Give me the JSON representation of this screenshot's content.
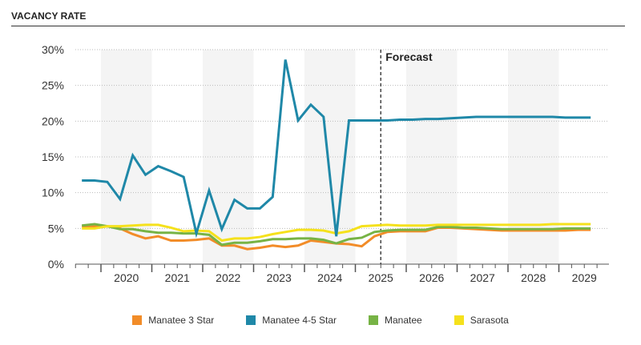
{
  "title": "VACANCY RATE",
  "chart_data": {
    "type": "line",
    "title": "VACANCY RATE",
    "xlabel": "",
    "ylabel": "",
    "ylim": [
      0,
      30
    ],
    "yticks": [
      "0%",
      "5%",
      "10%",
      "15%",
      "20%",
      "25%",
      "30%"
    ],
    "year_labels": [
      "2020",
      "2021",
      "2022",
      "2023",
      "2024",
      "2025",
      "2026",
      "2027",
      "2028",
      "2029"
    ],
    "x_start": "2019 Q3",
    "x_end": "2029 Q3",
    "frequency": "quarterly",
    "forecast_label": "Forecast",
    "forecast_start_index": 23.5,
    "series": [
      {
        "name": "Manatee 3 Star",
        "color": "#f28c28",
        "values": [
          5.3,
          5.3,
          5.3,
          5.0,
          4.2,
          3.6,
          3.9,
          3.3,
          3.3,
          3.4,
          3.6,
          2.6,
          2.6,
          2.1,
          2.3,
          2.6,
          2.4,
          2.6,
          3.3,
          3.1,
          2.9,
          2.8,
          2.5,
          3.9,
          4.5,
          4.6,
          4.6,
          4.6,
          5.1,
          5.1,
          5.0,
          4.9,
          4.8,
          4.7,
          4.7,
          4.7,
          4.7,
          4.7,
          4.7,
          4.8,
          4.8
        ]
      },
      {
        "name": "Manatee 4-5 Star",
        "color": "#1f88a8",
        "values": [
          11.7,
          11.7,
          11.5,
          9.1,
          15.2,
          12.5,
          13.7,
          13.0,
          12.2,
          4.3,
          10.3,
          4.9,
          9.0,
          7.8,
          7.8,
          9.4,
          28.6,
          20.1,
          22.3,
          20.6,
          3.9,
          20.1,
          20.1,
          20.1,
          20.1,
          20.2,
          20.2,
          20.3,
          20.3,
          20.4,
          20.5,
          20.6,
          20.6,
          20.6,
          20.6,
          20.6,
          20.6,
          20.6,
          20.5,
          20.5,
          20.5
        ]
      },
      {
        "name": "Manatee",
        "color": "#77b345",
        "values": [
          5.4,
          5.6,
          5.3,
          4.9,
          4.9,
          4.6,
          4.4,
          4.4,
          4.3,
          4.3,
          4.1,
          2.7,
          3.0,
          3.0,
          3.2,
          3.5,
          3.5,
          3.6,
          3.6,
          3.4,
          2.9,
          3.5,
          3.7,
          4.5,
          4.7,
          4.8,
          4.8,
          4.8,
          5.2,
          5.2,
          5.1,
          5.1,
          5.0,
          4.9,
          4.9,
          4.9,
          4.9,
          4.9,
          5.0,
          5.0,
          5.0
        ]
      },
      {
        "name": "Sarasota",
        "color": "#f5e11c",
        "values": [
          5.0,
          5.0,
          5.3,
          5.3,
          5.4,
          5.5,
          5.5,
          5.1,
          4.6,
          4.7,
          4.6,
          3.3,
          3.6,
          3.6,
          3.8,
          4.2,
          4.5,
          4.8,
          4.8,
          4.7,
          4.3,
          4.6,
          5.3,
          5.4,
          5.5,
          5.4,
          5.4,
          5.4,
          5.5,
          5.5,
          5.5,
          5.5,
          5.5,
          5.5,
          5.5,
          5.5,
          5.5,
          5.6,
          5.6,
          5.6,
          5.6
        ]
      }
    ],
    "legend_position": "bottom",
    "grid": true
  }
}
